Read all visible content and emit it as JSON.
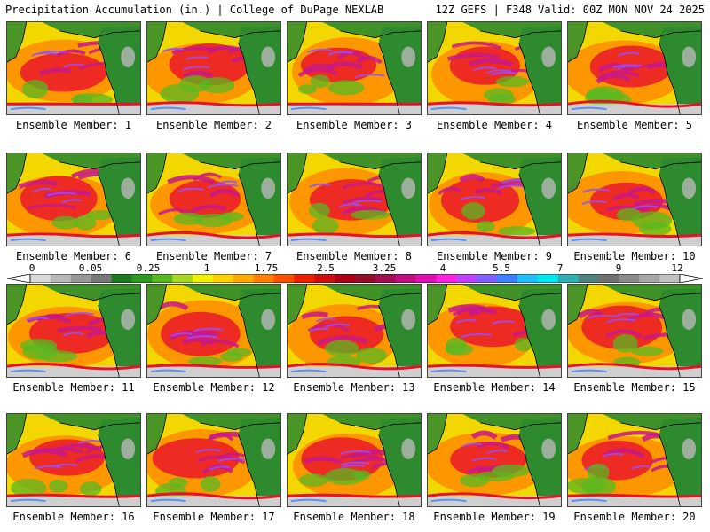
{
  "header": {
    "left_title": "Precipitation Accumulation (in.) | College of DuPage NEXLAB",
    "right_title": "12Z GEFS | F348 Valid: 00Z MON NOV 24 2025"
  },
  "member_prefix": "Ensemble Member: ",
  "members": [
    {
      "label": "Ensemble Member: 1"
    },
    {
      "label": "Ensemble Member: 2"
    },
    {
      "label": "Ensemble Member: 3"
    },
    {
      "label": "Ensemble Member: 4"
    },
    {
      "label": "Ensemble Member: 5"
    },
    {
      "label": "Ensemble Member: 6"
    },
    {
      "label": "Ensemble Member: 7"
    },
    {
      "label": "Ensemble Member: 8"
    },
    {
      "label": "Ensemble Member: 9"
    },
    {
      "label": "Ensemble Member: 10"
    },
    {
      "label": "Ensemble Member: 11"
    },
    {
      "label": "Ensemble Member: 12"
    },
    {
      "label": "Ensemble Member: 13"
    },
    {
      "label": "Ensemble Member: 14"
    },
    {
      "label": "Ensemble Member: 15"
    },
    {
      "label": "Ensemble Member: 16"
    },
    {
      "label": "Ensemble Member: 17"
    },
    {
      "label": "Ensemble Member: 18"
    },
    {
      "label": "Ensemble Member: 19"
    },
    {
      "label": "Ensemble Member: 20"
    }
  ],
  "colorbar": {
    "labels": [
      "0",
      "0.05",
      "0.25",
      "1",
      "1.75",
      "2.5",
      "3.25",
      "4",
      "5.5",
      "7",
      "9",
      "12"
    ],
    "colors": [
      "#d8d8d8",
      "#b8b8b8",
      "#989898",
      "#787878",
      "#1e7a1e",
      "#2e9a22",
      "#58b820",
      "#a8d820",
      "#f0f000",
      "#ffd000",
      "#ffa800",
      "#ff8000",
      "#ff5000",
      "#ee2000",
      "#d01010",
      "#b00018",
      "#901028",
      "#a01050",
      "#c01080",
      "#e010b0",
      "#ff20e0",
      "#c040ff",
      "#8060ff",
      "#4080ff",
      "#20c0ff",
      "#00e8f0",
      "#30b0b0",
      "#508080",
      "#707070",
      "#8a8a8a",
      "#a6a6a6",
      "#c0c0c0"
    ]
  },
  "palette": {
    "land": "#2e8a2e",
    "ocean_light": "#f2d800",
    "ocean_mid": "#ff8c00",
    "heavy": "#e8102a",
    "extreme": "#c81888",
    "peak": "#9a4cff",
    "coastline": "#000000"
  }
}
